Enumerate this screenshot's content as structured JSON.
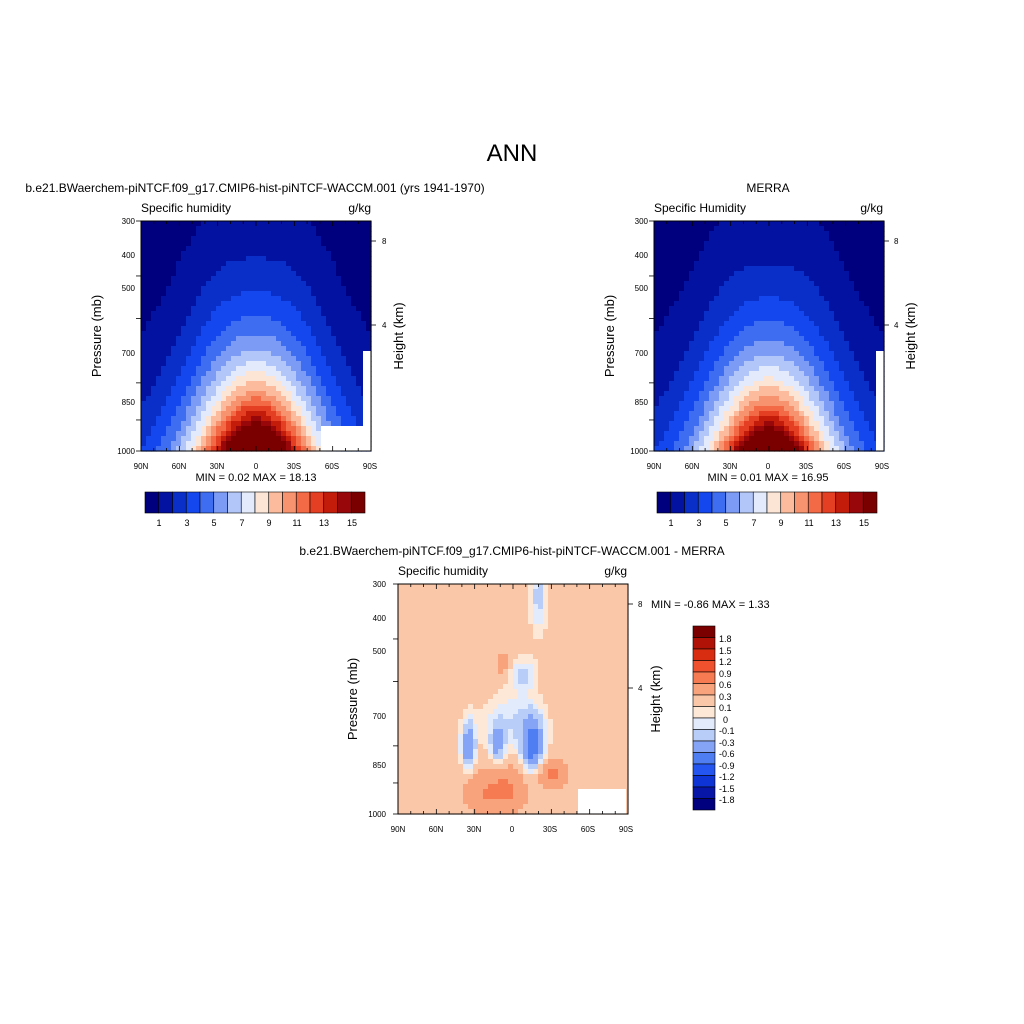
{
  "figure": {
    "title": "ANN"
  },
  "chart_data": [
    {
      "type": "heatmap",
      "title": "b.e21.BWaerchem-piNTCF.f09_g17.CMIP6-hist-piNTCF-WACCM.001 (yrs 1941-1970)",
      "left_string": "Specific humidity",
      "right_string": "g/kg",
      "xlabel": "",
      "ylabel": "Pressure (mb)",
      "ylabel_right": "Height (km)",
      "x_ticks": [
        "90N",
        "60N",
        "30N",
        "0",
        "30S",
        "60S",
        "90S"
      ],
      "y_ticks": [
        "300",
        "400",
        "500",
        "700",
        "850",
        "1000"
      ],
      "y_right_ticks": [
        "8",
        "4"
      ],
      "stats": "MIN =   0.02  MAX =  18.13",
      "min": 0.02,
      "max": 18.13,
      "colorbar_levels": [
        "1",
        "3",
        "5",
        "7",
        "9",
        "11",
        "13",
        "15"
      ],
      "field": {
        "peak": 18.13,
        "peak_lat": 0,
        "topo_right": true
      }
    },
    {
      "type": "heatmap",
      "title": "MERRA",
      "left_string": "Specific Humidity",
      "right_string": "g/kg",
      "xlabel": "",
      "ylabel": "Pressure (mb)",
      "ylabel_right": "Height (km)",
      "x_ticks": [
        "90N",
        "60N",
        "30N",
        "0",
        "30S",
        "60S",
        "90S"
      ],
      "y_ticks": [
        "300",
        "400",
        "500",
        "700",
        "850",
        "1000"
      ],
      "y_right_ticks": [
        "8",
        "4"
      ],
      "stats": "MIN =   0.01  MAX =  16.95",
      "min": 0.01,
      "max": 16.95,
      "colorbar_levels": [
        "1",
        "3",
        "5",
        "7",
        "9",
        "11",
        "13",
        "15"
      ],
      "field": {
        "peak": 16.95,
        "peak_lat": 0,
        "topo_right": false
      }
    },
    {
      "type": "heatmap",
      "title": "b.e21.BWaerchem-piNTCF.f09_g17.CMIP6-hist-piNTCF-WACCM.001 - MERRA",
      "left_string": "Specific humidity",
      "right_string": "g/kg",
      "xlabel": "",
      "ylabel": "Pressure (mb)",
      "ylabel_right": "Height (km)",
      "x_ticks": [
        "90N",
        "60N",
        "30N",
        "0",
        "30S",
        "60S",
        "90S"
      ],
      "y_ticks": [
        "300",
        "400",
        "500",
        "700",
        "850",
        "1000"
      ],
      "y_right_ticks": [
        "8",
        "4"
      ],
      "stats": "MIN =  -0.86  MAX =   1.33",
      "min": -0.86,
      "max": 1.33,
      "colorbar_levels": [
        "1.8",
        "1.5",
        "1.2",
        "0.9",
        "0.6",
        "0.3",
        "0.1",
        "0",
        "-0.1",
        "-0.3",
        "-0.6",
        "-0.9",
        "-1.2",
        "-1.5",
        "-1.8"
      ]
    }
  ],
  "colors": {
    "abs_palette": [
      "#00007f",
      "#0412a1",
      "#0a2ec8",
      "#1448ee",
      "#3f6df2",
      "#7b9bf5",
      "#b2c6f9",
      "#e2eafb",
      "#fde5d5",
      "#fbbb9c",
      "#f7936e",
      "#f36a47",
      "#e53f23",
      "#c31c0a",
      "#98070a",
      "#7a0000"
    ],
    "diff_palette": [
      "#00007f",
      "#0816a8",
      "#0f34d6",
      "#2455f0",
      "#4f7ef3",
      "#86a4f6",
      "#b9cdf9",
      "#e2ebfb",
      "#fde7d6",
      "#fbc7a9",
      "#f9a37c",
      "#f67a52",
      "#ef502e",
      "#d92d12",
      "#b01208",
      "#7a0000"
    ]
  }
}
